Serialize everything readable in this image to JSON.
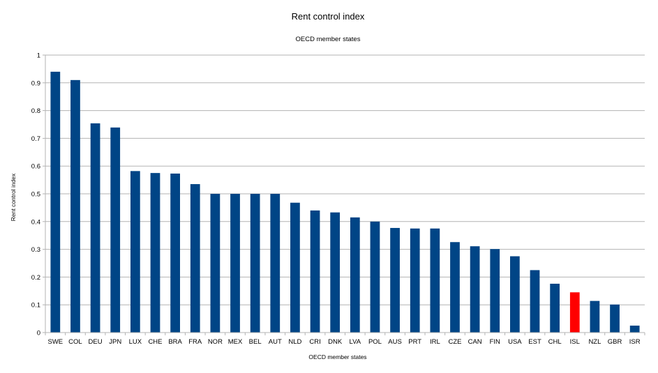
{
  "chart_data": {
    "type": "bar",
    "title": "Rent control index",
    "subtitle": "OECD member states",
    "xlabel": "OECD member states",
    "ylabel": "Rent control index",
    "ylim": [
      0,
      1
    ],
    "yticks": [
      "0",
      "0.1",
      "0.2",
      "0.3",
      "0.4",
      "0.5",
      "0.6",
      "0.7",
      "0.8",
      "0.9",
      "1"
    ],
    "grid": true,
    "legend": "none",
    "bar_color": "#004586",
    "highlight_color": "#ff0000",
    "highlight_category": "ISL",
    "categories": [
      "SWE",
      "COL",
      "DEU",
      "JPN",
      "LUX",
      "CHE",
      "BRA",
      "FRA",
      "NOR",
      "MEX",
      "BEL",
      "AUT",
      "NLD",
      "CRI",
      "DNK",
      "LVA",
      "POL",
      "AUS",
      "PRT",
      "IRL",
      "CZE",
      "CAN",
      "FIN",
      "USA",
      "EST",
      "CHL",
      "ISL",
      "NZL",
      "GBR",
      "ISR"
    ],
    "values": [
      0.94,
      0.91,
      0.754,
      0.739,
      0.582,
      0.575,
      0.573,
      0.535,
      0.5,
      0.5,
      0.5,
      0.5,
      0.468,
      0.44,
      0.433,
      0.415,
      0.4,
      0.377,
      0.375,
      0.375,
      0.326,
      0.311,
      0.301,
      0.275,
      0.225,
      0.176,
      0.145,
      0.114,
      0.101,
      0.025
    ]
  }
}
